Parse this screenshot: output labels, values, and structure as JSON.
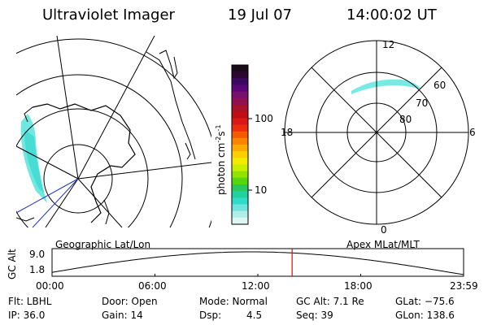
{
  "header": {
    "instrument": "Ultraviolet Imager",
    "date": "19 Jul 07",
    "time": "14:00:02 UT"
  },
  "geo_panel": {
    "caption": "Geographic Lat/Lon"
  },
  "mag_panel": {
    "caption": "Apex MLat/MLT",
    "mlt_labels": {
      "top": "12",
      "left": "18",
      "right": "6",
      "bottom": "0"
    },
    "lat_labels": [
      "60",
      "70",
      "80"
    ]
  },
  "colorbar": {
    "label": "photon cm",
    "label_sup1": "-2",
    "label_mid": "s",
    "label_sup2": "-1",
    "ticks": [
      "100",
      "10"
    ],
    "colors": [
      "#1a0a1a",
      "#2a0830",
      "#3b0a60",
      "#5a0878",
      "#78106e",
      "#901050",
      "#a8102c",
      "#c00c14",
      "#d81818",
      "#ec2c0c",
      "#f45a00",
      "#f88400",
      "#fcac00",
      "#fcd000",
      "#f4ec00",
      "#c8ee00",
      "#90e200",
      "#58d410",
      "#28c85a",
      "#20d0a0",
      "#30dcc8",
      "#70e4dc",
      "#b0eeea",
      "#e0f6f4"
    ]
  },
  "altitude_plot": {
    "ylabel": "GC Alt",
    "ytick_top": "9.0",
    "ytick_bottom": "1.8",
    "xticks": [
      "00:00",
      "06:00",
      "12:00",
      "18:00",
      "23:59"
    ],
    "current_time_hours": 14.0,
    "marker_color": "#d01010"
  },
  "status": {
    "filter": "Flt: LBHL",
    "ip": "IP: 36.0",
    "door": "Door: Open",
    "gain": "Gain: 14",
    "mode": "Mode: Normal",
    "dsp_label": "Dsp:",
    "dsp_value": "4.5",
    "gc_alt": "GC Alt: 7.1 Re",
    "seq": "Seq: 39",
    "glat": "GLat: −75.6",
    "glon": "GLon: 138.6"
  }
}
